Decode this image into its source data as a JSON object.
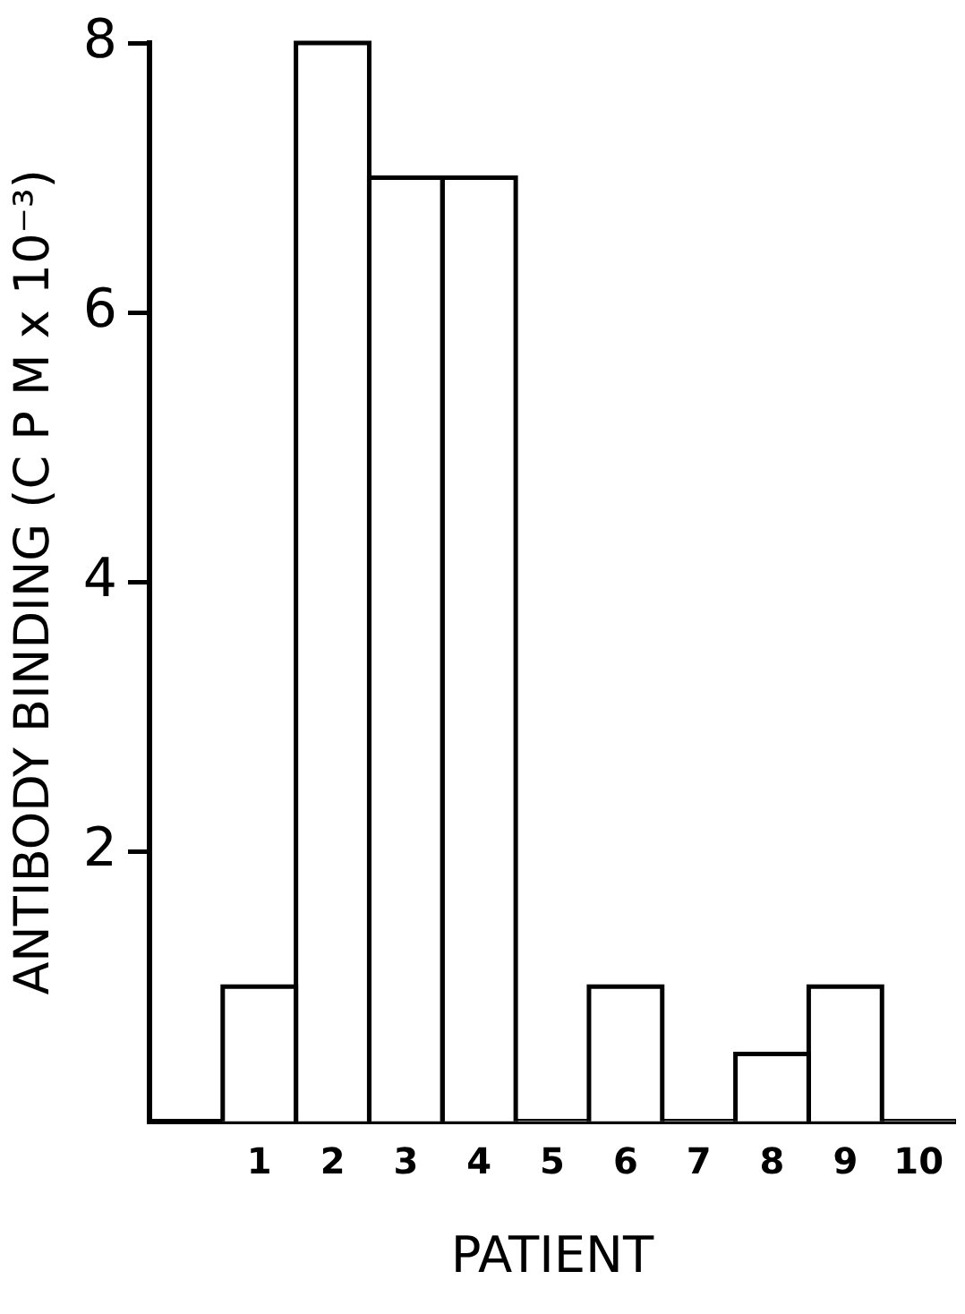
{
  "chart_data": {
    "type": "bar",
    "xlabel": "PATIENT",
    "ylabel": "ANTIBODY BINDING (C P M x 10⁻³)",
    "categories": [
      null,
      "1",
      "2",
      "3",
      "4",
      "5",
      "6",
      "7",
      "8",
      "9",
      "10"
    ],
    "values": [
      null,
      1,
      8,
      7,
      7,
      0,
      1,
      0,
      0.5,
      1,
      0
    ],
    "color": "#ffffff",
    "ylim": [
      0,
      8
    ],
    "yticks": [
      2,
      4,
      6,
      8
    ],
    "grid": false,
    "legend": false
  }
}
